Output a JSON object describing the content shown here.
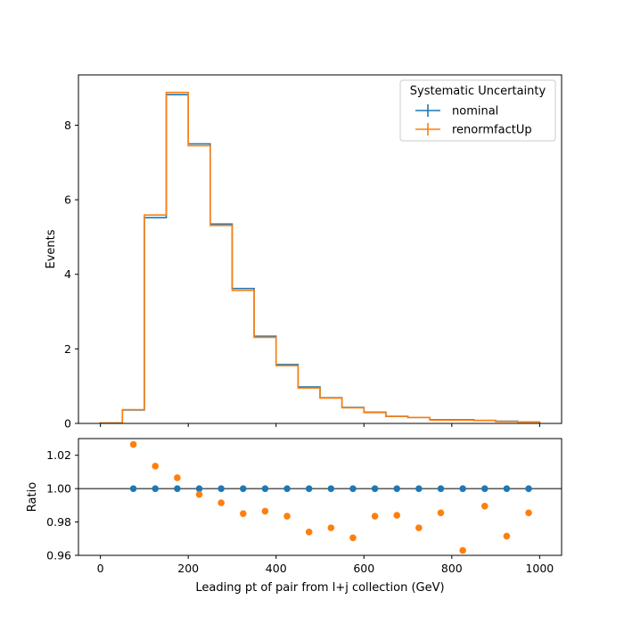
{
  "chart_data": [
    {
      "type": "step-histogram",
      "xlim": [
        -50,
        1050
      ],
      "ylim": [
        0,
        9.35
      ],
      "ylabel": "Events",
      "xticks": [
        0,
        200,
        400,
        600,
        800,
        1000
      ],
      "yticks": [
        0,
        2,
        4,
        6,
        8
      ],
      "bin_edges": [
        0,
        50,
        100,
        150,
        200,
        250,
        300,
        350,
        400,
        450,
        500,
        550,
        600,
        650,
        700,
        750,
        800,
        850,
        900,
        950,
        1000
      ],
      "legend": {
        "title": "Systematic Uncertainty",
        "placement": "top-right"
      },
      "series": [
        {
          "name": "nominal",
          "color": "#1f77b4",
          "values": [
            0.01,
            0.36,
            5.52,
            8.82,
            7.5,
            5.35,
            3.62,
            2.34,
            1.58,
            0.98,
            0.69,
            0.43,
            0.3,
            0.19,
            0.16,
            0.1,
            0.1,
            0.08,
            0.06,
            0.04
          ]
        },
        {
          "name": "renormfactUp",
          "color": "#ff7f0e",
          "values": [
            0.01,
            0.37,
            5.59,
            8.88,
            7.45,
            5.31,
            3.57,
            2.31,
            1.55,
            0.95,
            0.68,
            0.42,
            0.29,
            0.19,
            0.16,
            0.09,
            0.09,
            0.08,
            0.05,
            0.04
          ]
        }
      ]
    },
    {
      "type": "scatter",
      "xlim": [
        -50,
        1050
      ],
      "ylim": [
        0.96,
        1.03
      ],
      "xlabel": "Leading pt of pair from l+j collection (GeV)",
      "ylabel": "Ratio",
      "xticks": [
        0,
        200,
        400,
        600,
        800,
        1000
      ],
      "yticks": [
        0.96,
        0.98,
        1.0,
        1.02
      ],
      "ytick_labels": [
        "0.96",
        "0.98",
        "1.00",
        "1.02"
      ],
      "reference_line": 1.0,
      "x": [
        75,
        125,
        175,
        225,
        275,
        325,
        375,
        425,
        475,
        525,
        575,
        625,
        675,
        725,
        775,
        825,
        875,
        925,
        975
      ],
      "series": [
        {
          "name": "nominal",
          "color": "#1f77b4",
          "values": [
            1.0,
            1.0,
            1.0,
            1.0,
            1.0,
            1.0,
            1.0,
            1.0,
            1.0,
            1.0,
            1.0,
            1.0,
            1.0,
            1.0,
            1.0,
            1.0,
            1.0,
            1.0,
            1.0
          ]
        },
        {
          "name": "renormfactUp",
          "color": "#ff7f0e",
          "values": [
            1.0265,
            1.0135,
            1.0065,
            0.9965,
            0.9915,
            0.985,
            0.9865,
            0.9835,
            0.974,
            0.9765,
            0.9705,
            0.9835,
            0.984,
            0.9765,
            0.9855,
            0.963,
            0.9895,
            0.9715,
            0.9855
          ]
        }
      ]
    }
  ]
}
